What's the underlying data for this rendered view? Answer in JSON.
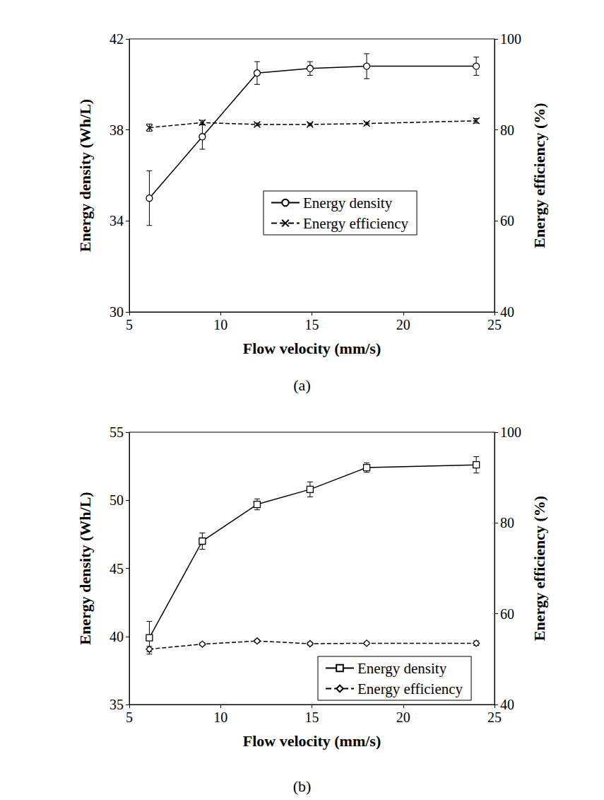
{
  "chart_data": [
    {
      "type": "line",
      "title": "(a)",
      "x": [
        6.1,
        9,
        12,
        14.9,
        18,
        24
      ],
      "xlabel": "Flow velocity (mm/s)",
      "ylabel": "Energy density (Wh/L)",
      "y2label": "Energy efficiency (%)",
      "xlim": [
        5,
        25
      ],
      "xticks": [
        5,
        10,
        15,
        20,
        25
      ],
      "ylim": [
        30,
        42
      ],
      "yticks": [
        30,
        34,
        38,
        42
      ],
      "y2lim": [
        40,
        100
      ],
      "y2ticks": [
        40,
        60,
        80,
        100
      ],
      "grid": false,
      "legend": "center",
      "series": [
        {
          "name": "Energy density",
          "color": "#000000",
          "marker": "circle",
          "line_style": "solid",
          "values": [
            35.0,
            37.7,
            40.5,
            40.7,
            40.8,
            40.8
          ],
          "errors": [
            1.2,
            0.55,
            0.5,
            0.3,
            0.55,
            0.4
          ]
        },
        {
          "name": "Energy efficiency",
          "axis": "y2",
          "color": "#000000",
          "marker": "x",
          "line_style": "dashed",
          "values": [
            80.5,
            81.6,
            81.2,
            81.2,
            81.4,
            82.0
          ],
          "errors": [
            0.8,
            0.5,
            0.3,
            0.3,
            0.3,
            0.5
          ]
        }
      ]
    },
    {
      "type": "line",
      "title": "(b)",
      "x": [
        6.1,
        9,
        12,
        14.9,
        18,
        24
      ],
      "xlabel": "Flow velocity (mm/s)",
      "ylabel": "Energy density (Wh/L)",
      "y2label": "Energy efficiency (%)",
      "xlim": [
        5,
        25
      ],
      "xticks": [
        5,
        10,
        15,
        20,
        25
      ],
      "ylim": [
        35,
        55
      ],
      "yticks": [
        35,
        40,
        45,
        50,
        55
      ],
      "y2lim": [
        40,
        100
      ],
      "y2ticks": [
        40,
        60,
        80,
        100
      ],
      "grid": false,
      "legend": "lower right",
      "series": [
        {
          "name": "Energy density",
          "color": "#000000",
          "marker": "square",
          "line_style": "solid",
          "values": [
            39.9,
            47.0,
            49.7,
            50.8,
            52.4,
            52.6
          ],
          "errors": [
            1.2,
            0.6,
            0.4,
            0.55,
            0.35,
            0.6
          ]
        },
        {
          "name": "Energy efficiency",
          "axis": "y2",
          "color": "#000000",
          "marker": "diamond",
          "line_style": "dashed",
          "values": [
            52.2,
            53.3,
            54.0,
            53.4,
            53.5,
            53.5
          ],
          "errors": [
            0.6,
            0.3,
            0.3,
            0.3,
            0.3,
            0.5
          ]
        }
      ]
    }
  ]
}
